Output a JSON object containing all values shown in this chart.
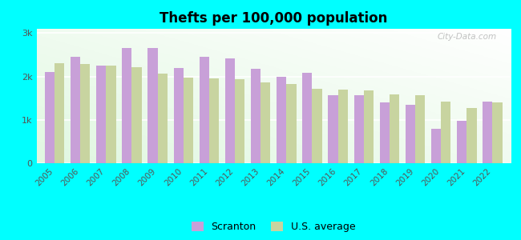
{
  "title": "Thefts per 100,000 population",
  "years": [
    2005,
    2006,
    2007,
    2008,
    2009,
    2010,
    2011,
    2012,
    2013,
    2014,
    2015,
    2016,
    2017,
    2018,
    2019,
    2020,
    2021,
    2022
  ],
  "scranton": [
    2100,
    2450,
    2250,
    2650,
    2650,
    2200,
    2450,
    2420,
    2180,
    2000,
    2080,
    1560,
    1560,
    1400,
    1340,
    800,
    980,
    1430
  ],
  "us_average": [
    2300,
    2280,
    2260,
    2220,
    2060,
    1980,
    1960,
    1940,
    1870,
    1820,
    1720,
    1700,
    1680,
    1590,
    1560,
    1420,
    1270,
    1400
  ],
  "scranton_color": "#c8a0d8",
  "us_avg_color": "#c8d4a0",
  "outer_background": "#00ffff",
  "ylabel_ticks": [
    "0",
    "1k",
    "2k",
    "3k"
  ],
  "ytick_vals": [
    0,
    1000,
    2000,
    3000
  ],
  "ylim": [
    0,
    3100
  ],
  "watermark": "City-Data.com"
}
